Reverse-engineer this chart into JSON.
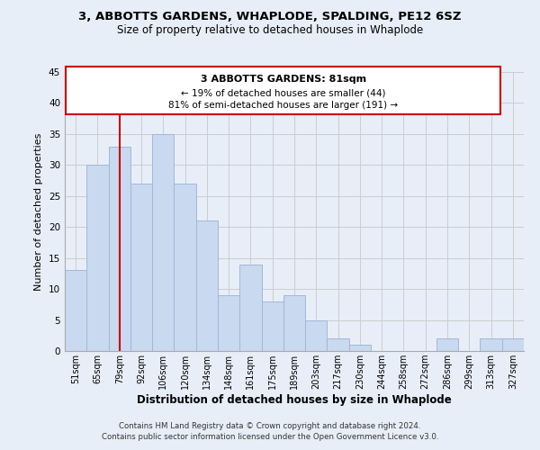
{
  "title_line1": "3, ABBOTTS GARDENS, WHAPLODE, SPALDING, PE12 6SZ",
  "title_line2": "Size of property relative to detached houses in Whaplode",
  "xlabel": "Distribution of detached houses by size in Whaplode",
  "ylabel": "Number of detached properties",
  "bar_color": "#c8d9f0",
  "bar_edgecolor": "#a0b8d8",
  "categories": [
    "51sqm",
    "65sqm",
    "79sqm",
    "92sqm",
    "106sqm",
    "120sqm",
    "134sqm",
    "148sqm",
    "161sqm",
    "175sqm",
    "189sqm",
    "203sqm",
    "217sqm",
    "230sqm",
    "244sqm",
    "258sqm",
    "272sqm",
    "286sqm",
    "299sqm",
    "313sqm",
    "327sqm"
  ],
  "values": [
    13,
    30,
    33,
    27,
    35,
    27,
    21,
    9,
    14,
    8,
    9,
    5,
    2,
    1,
    0,
    0,
    0,
    2,
    0,
    2,
    2
  ],
  "ylim": [
    0,
    45
  ],
  "yticks": [
    0,
    5,
    10,
    15,
    20,
    25,
    30,
    35,
    40,
    45
  ],
  "vline_x": 2,
  "vline_color": "#cc0000",
  "annotation_title": "3 ABBOTTS GARDENS: 81sqm",
  "annotation_line2": "← 19% of detached houses are smaller (44)",
  "annotation_line3": "81% of semi-detached houses are larger (191) →",
  "footer_line1": "Contains HM Land Registry data © Crown copyright and database right 2024.",
  "footer_line2": "Contains public sector information licensed under the Open Government Licence v3.0.",
  "grid_color": "#cccccc",
  "background_color": "#e8eef8"
}
